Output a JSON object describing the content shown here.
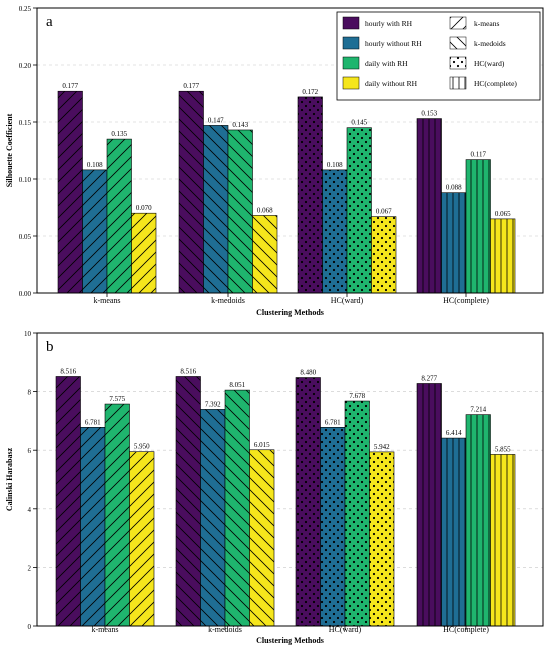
{
  "chart_data": [
    {
      "type": "bar",
      "panel_label": "a",
      "title": "",
      "xlabel": "Clustering Methods",
      "ylabel": "Silhouette Coefficient",
      "ylim": [
        0,
        0.25
      ],
      "yticks": [
        0.0,
        0.05,
        0.1,
        0.15,
        0.2,
        0.25
      ],
      "ytick_labels": [
        "0.00",
        "0.05",
        "0.10",
        "0.15",
        "0.20",
        "0.25"
      ],
      "grid": "horizontal dashed",
      "legend_position": "top-right",
      "categories": [
        "k-means",
        "k-medoids",
        "HC(ward)",
        "HC(complete)"
      ],
      "series": [
        {
          "name": "hourly with RH",
          "color": "#4a0d5e",
          "values": [
            0.177,
            0.177,
            0.172,
            0.153
          ],
          "labels": [
            "0.177",
            "0.177",
            "0.172",
            "0.153"
          ]
        },
        {
          "name": "hourly without RH",
          "color": "#1f6e94",
          "values": [
            0.108,
            0.147,
            0.108,
            0.088
          ],
          "labels": [
            "0.108",
            "0.147",
            "0.108",
            "0.088"
          ]
        },
        {
          "name": "daily with RH",
          "color": "#1fb56e",
          "values": [
            0.135,
            0.143,
            0.145,
            0.117
          ],
          "labels": [
            "0.135",
            "0.143",
            "0.145",
            "0.117"
          ]
        },
        {
          "name": "daily without RH",
          "color": "#f5e61c",
          "values": [
            0.07,
            0.068,
            0.067,
            0.065
          ],
          "labels": [
            "0.070",
            "0.068",
            "0.067",
            "0.065"
          ]
        }
      ],
      "hatch_legend": [
        {
          "name": "k-means",
          "hatch": "forward-slash"
        },
        {
          "name": "k-medoids",
          "hatch": "back-slash"
        },
        {
          "name": "HC(ward)",
          "hatch": "dots"
        },
        {
          "name": "HC(complete)",
          "hatch": "vertical-lines"
        }
      ]
    },
    {
      "type": "bar",
      "panel_label": "b",
      "title": "",
      "xlabel": "Clustering Methods",
      "ylabel": "Calinski Harabasz",
      "ylim": [
        0,
        10
      ],
      "yticks": [
        0,
        2,
        4,
        6,
        8,
        10
      ],
      "ytick_labels": [
        "0",
        "2",
        "4",
        "6",
        "8",
        "10"
      ],
      "grid": "horizontal dashed",
      "categories": [
        "k-means",
        "k-medoids",
        "HC(ward)",
        "HC(complete)"
      ],
      "series": [
        {
          "name": "hourly with RH",
          "color": "#4a0d5e",
          "values": [
            8.516,
            8.516,
            8.48,
            8.277
          ],
          "labels": [
            "8.516",
            "8.516",
            "8.480",
            "8.277"
          ]
        },
        {
          "name": "hourly without RH",
          "color": "#1f6e94",
          "values": [
            6.781,
            7.392,
            6.781,
            6.414
          ],
          "labels": [
            "6.781",
            "7.392",
            "6.781",
            "6.414"
          ]
        },
        {
          "name": "daily with RH",
          "color": "#1fb56e",
          "values": [
            7.575,
            8.051,
            7.678,
            7.214
          ],
          "labels": [
            "7.575",
            "8.051",
            "7.678",
            "7.214"
          ]
        },
        {
          "name": "daily without RH",
          "color": "#f5e61c",
          "values": [
            5.95,
            6.015,
            5.942,
            5.855
          ],
          "labels": [
            "5.950",
            "6.015",
            "5.942",
            "5.855"
          ]
        }
      ]
    }
  ]
}
